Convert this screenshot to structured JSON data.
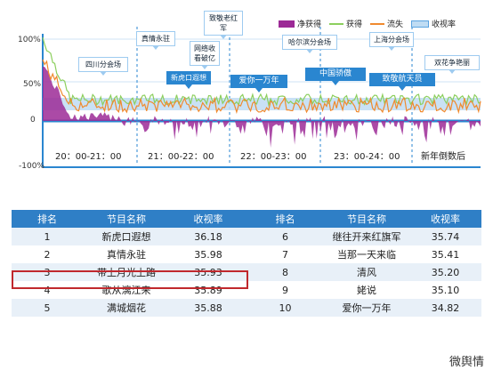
{
  "chart_data": {
    "type": "line",
    "legend": [
      "净获得",
      "获得",
      "流失",
      "收视率"
    ],
    "y_ticks": [
      "100%",
      "50%",
      "0",
      "-100%"
    ],
    "time_labels": [
      "20：00-21：00",
      "21：00-22：00",
      "22：00-23：00",
      "23：00-24：00",
      "新年倒数后"
    ],
    "annotations": [
      "四川分会场",
      "真情永驻",
      "新虎口遐想",
      "网络收看破亿",
      "致敬老红军",
      "爱你一万年",
      "哈尔滨分会场",
      "中国骄傲",
      "上海分会场",
      "致敬航天员",
      "双花争艳丽"
    ],
    "colors": {
      "net": "#9c2a96",
      "gain": "#8ccf5e",
      "loss": "#f08a2e",
      "rating": "#5aa3e0"
    }
  },
  "table": {
    "headers": [
      "排名",
      "节目名称",
      "收视率",
      "排名",
      "节目名称",
      "收视率"
    ],
    "rows": [
      [
        "1",
        "新虎口遐想",
        "36.18",
        "6",
        "继往开来红旗军",
        "35.74"
      ],
      [
        "2",
        "真情永驻",
        "35.98",
        "7",
        "当那一天来临",
        "35.41"
      ],
      [
        "3",
        "带上月光上路",
        "35.93",
        "8",
        "清风",
        "35.20"
      ],
      [
        "4",
        "歌从漓江来",
        "35.89",
        "9",
        "姥说",
        "35.10"
      ],
      [
        "5",
        "满城烟花",
        "35.88",
        "10",
        "爱你一万年",
        "34.82"
      ]
    ]
  },
  "watermark": "微舆情"
}
